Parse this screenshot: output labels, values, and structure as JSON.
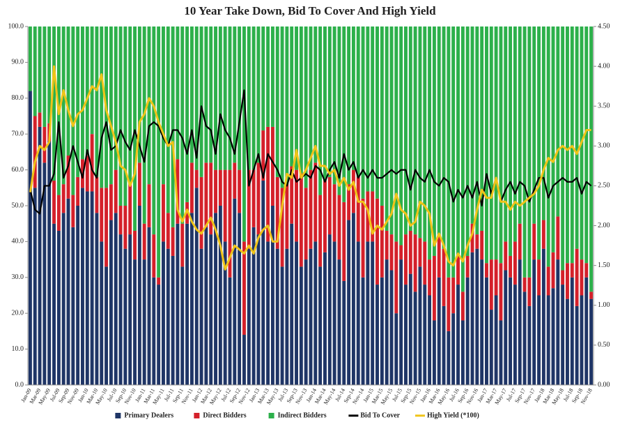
{
  "chart_data": {
    "type": "bar",
    "stacked": true,
    "title": "10 Year Take Down, Bid To Cover And High Yield",
    "categories": [
      "Jan-09",
      null,
      "Mar-09",
      null,
      "May-09",
      null,
      "Jul-09",
      null,
      "Sep-09",
      null,
      "Nov-09",
      null,
      "Jan-10",
      null,
      "Mar-10",
      null,
      "May-10",
      null,
      "Jul-10",
      null,
      "Sep-10",
      null,
      "Nov-10",
      null,
      "Jan-11",
      null,
      "Mar-11",
      null,
      "May-11",
      null,
      "Jul-11",
      null,
      "Sep-11",
      null,
      "Nov-11",
      null,
      "Jan-12",
      null,
      "Mar-12",
      null,
      "May-12",
      null,
      "Jul-12",
      null,
      "Sep-12",
      null,
      "Nov-12",
      null,
      "Jan-13",
      null,
      "Mar-13",
      null,
      "May-13",
      null,
      "Jul-13",
      null,
      "Sep-13",
      null,
      "Nov-13",
      null,
      "Jan-14",
      null,
      "Mar-14",
      null,
      "May-14",
      null,
      "Jul-14",
      null,
      "Sep-14",
      null,
      "Nov-14",
      null,
      "Jan-15",
      null,
      "Mar-15",
      null,
      "May-15",
      null,
      "Jul-15",
      null,
      "Sep-15",
      null,
      "Nov-15",
      null,
      "Jan-16",
      null,
      "Mar-16",
      null,
      "May-16",
      null,
      "Jul-16",
      null,
      "Sep-16",
      null,
      "Nov-16",
      null,
      "Jan-17",
      null,
      "Mar-17",
      null,
      "May-17",
      null,
      "Jul-17",
      null,
      "Sep-17",
      null,
      "Nov-17",
      null,
      "Jan-18",
      null,
      "Mar-18",
      null,
      "May-18",
      null,
      "Jul-18",
      null,
      "Sep-18",
      null,
      "Nov-18"
    ],
    "series": [
      {
        "name": "Primary Dealers",
        "type": "bar",
        "color": "#1f3566",
        "values": [
          82,
          55,
          72,
          62,
          68,
          45,
          43,
          48,
          52,
          44,
          50,
          55,
          54,
          54,
          48,
          40,
          33,
          46,
          48,
          42,
          38,
          42,
          35,
          50,
          35,
          44,
          30,
          28,
          40,
          38,
          36,
          45,
          33,
          45,
          48,
          55,
          38,
          44,
          42,
          48,
          50,
          40,
          30,
          52,
          48,
          14,
          38,
          44,
          42,
          57,
          40,
          50,
          38,
          33,
          38,
          45,
          40,
          33,
          35,
          38,
          40,
          33,
          37,
          42,
          40,
          35,
          29,
          46,
          48,
          40,
          30,
          40,
          40,
          28,
          30,
          35,
          32,
          20,
          35,
          28,
          31,
          26,
          33,
          28,
          25,
          18,
          30,
          22,
          15,
          20,
          28,
          18,
          30,
          37,
          38,
          35,
          30,
          21,
          25,
          18,
          32,
          30,
          28,
          35,
          26,
          22,
          35,
          25,
          38,
          25,
          27,
          35,
          28,
          24,
          30,
          22,
          25,
          30,
          24
        ]
      },
      {
        "name": "Direct Bidders",
        "type": "bar",
        "color": "#d4202a",
        "values": [
          0,
          20,
          4,
          10,
          5,
          12,
          10,
          8,
          12,
          9,
          8,
          8,
          10,
          16,
          10,
          15,
          22,
          10,
          12,
          8,
          12,
          14,
          8,
          12,
          10,
          12,
          12,
          2,
          16,
          10,
          8,
          18,
          12,
          6,
          14,
          5,
          20,
          18,
          20,
          12,
          10,
          20,
          30,
          10,
          12,
          26,
          22,
          16,
          20,
          14,
          32,
          22,
          20,
          22,
          18,
          16,
          20,
          26,
          20,
          22,
          22,
          20,
          20,
          16,
          16,
          18,
          22,
          10,
          12,
          18,
          22,
          14,
          14,
          24,
          20,
          8,
          10,
          20,
          4,
          14,
          12,
          16,
          8,
          12,
          10,
          18,
          12,
          16,
          15,
          10,
          8,
          8,
          6,
          8,
          4,
          8,
          4,
          14,
          10,
          16,
          8,
          6,
          12,
          10,
          4,
          8,
          10,
          10,
          8,
          8,
          10,
          12,
          4,
          10,
          4,
          16,
          10,
          4,
          2
        ]
      },
      {
        "name": "Indirect Bidders",
        "type": "bar",
        "color": "#2db04b",
        "values": [
          18,
          25,
          24,
          28,
          27,
          43,
          47,
          44,
          36,
          47,
          42,
          37,
          36,
          30,
          42,
          45,
          45,
          44,
          40,
          50,
          50,
          44,
          57,
          38,
          55,
          44,
          58,
          70,
          44,
          52,
          56,
          37,
          55,
          49,
          38,
          40,
          42,
          38,
          38,
          40,
          40,
          40,
          40,
          38,
          40,
          60,
          40,
          40,
          38,
          29,
          28,
          28,
          42,
          45,
          44,
          39,
          40,
          41,
          45,
          40,
          38,
          47,
          43,
          42,
          44,
          47,
          49,
          44,
          40,
          42,
          48,
          46,
          46,
          48,
          50,
          57,
          58,
          60,
          61,
          58,
          57,
          58,
          59,
          60,
          65,
          64,
          58,
          62,
          70,
          70,
          64,
          74,
          64,
          55,
          58,
          57,
          66,
          65,
          65,
          66,
          60,
          64,
          60,
          55,
          70,
          70,
          55,
          65,
          54,
          67,
          63,
          53,
          68,
          66,
          66,
          62,
          65,
          66,
          74
        ]
      },
      {
        "name": "Bid To Cover",
        "type": "line",
        "axis": "y2",
        "color": "#000000",
        "values": [
          2.45,
          2.2,
          2.15,
          2.5,
          2.5,
          2.65,
          3.3,
          2.6,
          2.75,
          3.0,
          2.8,
          2.6,
          2.95,
          2.7,
          2.6,
          3.1,
          3.3,
          2.95,
          3.0,
          3.2,
          3.05,
          2.95,
          3.2,
          3.0,
          2.8,
          3.25,
          3.3,
          3.25,
          3.1,
          3.0,
          3.2,
          3.2,
          3.1,
          2.9,
          3.2,
          2.85,
          3.5,
          3.25,
          3.2,
          2.9,
          3.4,
          3.2,
          3.1,
          2.9,
          3.3,
          3.7,
          2.5,
          2.7,
          2.9,
          2.6,
          2.9,
          2.8,
          2.7,
          2.55,
          2.5,
          2.7,
          2.55,
          2.6,
          2.65,
          2.6,
          2.75,
          2.7,
          2.55,
          2.7,
          2.8,
          2.6,
          2.9,
          2.7,
          2.8,
          2.6,
          2.7,
          2.6,
          2.7,
          2.6,
          2.6,
          2.65,
          2.7,
          2.65,
          2.7,
          2.7,
          2.45,
          2.7,
          2.6,
          2.55,
          2.7,
          2.55,
          2.5,
          2.6,
          2.55,
          2.3,
          2.45,
          2.35,
          2.5,
          2.35,
          2.55,
          2.25,
          2.65,
          2.4,
          2.6,
          2.3,
          2.45,
          2.55,
          2.4,
          2.55,
          2.5,
          2.3,
          2.45,
          2.6,
          2.6,
          2.35,
          2.5,
          2.55,
          2.6,
          2.55,
          2.55,
          2.6,
          2.4,
          2.55,
          2.5
        ]
      },
      {
        "name": "High Yield (*100)",
        "type": "line",
        "axis": "y2",
        "color": "#f0c419",
        "values": [
          2.42,
          2.8,
          3.0,
          2.95,
          3.05,
          4.0,
          3.4,
          3.7,
          3.45,
          3.25,
          3.4,
          3.45,
          3.6,
          3.75,
          3.7,
          3.9,
          3.45,
          3.25,
          3.05,
          2.75,
          2.7,
          2.5,
          2.65,
          3.3,
          3.4,
          3.6,
          3.5,
          3.3,
          3.15,
          3.0,
          3.05,
          2.2,
          2.05,
          2.2,
          2.05,
          1.95,
          1.9,
          2.0,
          2.1,
          1.95,
          1.75,
          1.45,
          1.6,
          1.75,
          1.7,
          1.65,
          1.75,
          1.65,
          1.85,
          1.95,
          2.0,
          1.8,
          1.8,
          2.25,
          2.65,
          2.6,
          2.95,
          2.6,
          2.7,
          2.85,
          3.0,
          2.75,
          2.75,
          2.65,
          2.7,
          2.5,
          2.6,
          2.45,
          2.55,
          2.3,
          2.3,
          2.2,
          1.9,
          2.0,
          1.95,
          2.05,
          2.15,
          2.4,
          2.2,
          2.15,
          2.0,
          2.05,
          2.3,
          2.25,
          2.15,
          1.75,
          1.9,
          1.75,
          1.55,
          1.5,
          1.65,
          1.55,
          1.75,
          1.9,
          2.2,
          2.45,
          2.35,
          2.35,
          2.6,
          2.3,
          2.3,
          2.2,
          2.3,
          2.25,
          2.3,
          2.35,
          2.4,
          2.5,
          2.7,
          2.85,
          2.8,
          2.95,
          3.0,
          2.95,
          3.0,
          2.9,
          3.05,
          3.2,
          3.2
        ]
      }
    ],
    "ylim": [
      0,
      100
    ],
    "yticks": [
      {
        "value": 0,
        "label": "0.0"
      },
      {
        "value": 10,
        "label": "10.0"
      },
      {
        "value": 20,
        "label": "20.0"
      },
      {
        "value": 30,
        "label": "30.0"
      },
      {
        "value": 40,
        "label": "40.0"
      },
      {
        "value": 50,
        "label": "50.0"
      },
      {
        "value": 60,
        "label": "60.0"
      },
      {
        "value": 70,
        "label": "70.0"
      },
      {
        "value": 80,
        "label": "80.0"
      },
      {
        "value": 90,
        "label": "90.0"
      },
      {
        "value": 100,
        "label": "100.0"
      }
    ],
    "y2lim": [
      0,
      4.5
    ],
    "y2ticks": [
      {
        "value": 0,
        "label": "0.00"
      },
      {
        "value": 0.5,
        "label": "0.50"
      },
      {
        "value": 1,
        "label": "1.00"
      },
      {
        "value": 1.5,
        "label": "1.50"
      },
      {
        "value": 2,
        "label": "2.00"
      },
      {
        "value": 2.5,
        "label": "2.50"
      },
      {
        "value": 3,
        "label": "3.00"
      },
      {
        "value": 3.5,
        "label": "3.50"
      },
      {
        "value": 4,
        "label": "4.00"
      },
      {
        "value": 4.5,
        "label": "4.50"
      }
    ],
    "legend": "bottom"
  }
}
